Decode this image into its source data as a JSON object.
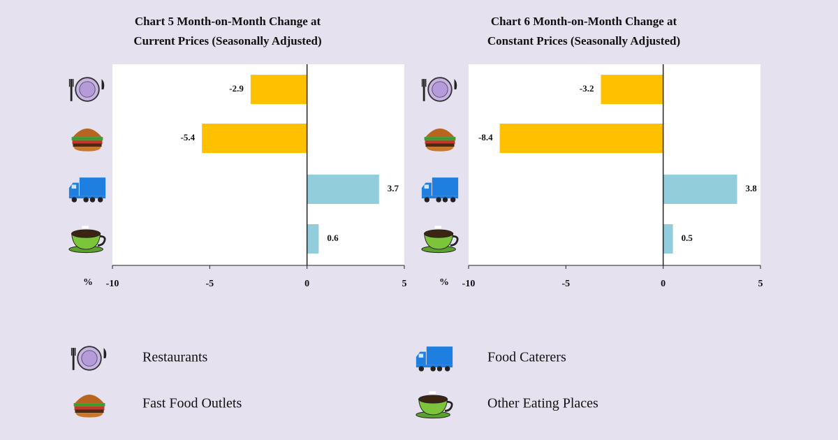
{
  "charts": [
    {
      "chart_data": {
        "type": "bar",
        "orientation": "horizontal",
        "title": [
          "Chart 5  Month-on-Month Change at",
          "Current Prices (Seasonally Adjusted)"
        ],
        "categories": [
          null,
          null,
          null,
          null
        ],
        "values": [
          -2.9,
          -5.4,
          3.7,
          0.6
        ],
        "colors": [
          "#ffc000",
          "#ffc000",
          "#92cddc",
          "#92cddc"
        ],
        "x_label": "%",
        "xlim": [
          -10,
          5
        ],
        "xticks": [
          -10,
          -5,
          0,
          5
        ]
      }
    },
    {
      "chart_data": {
        "type": "bar",
        "orientation": "horizontal",
        "title": [
          "Chart 6  Month-on-Month Change at",
          "Constant Prices (Seasonally Adjusted)"
        ],
        "categories": [
          null,
          null,
          null,
          null
        ],
        "values": [
          -3.2,
          -8.4,
          3.8,
          0.5
        ],
        "colors": [
          "#ffc000",
          "#ffc000",
          "#92cddc",
          "#92cddc"
        ],
        "x_label": "%",
        "xlim": [
          -10,
          5
        ],
        "xticks": [
          -10,
          -5,
          0,
          5
        ]
      }
    }
  ],
  "legend": [
    "Restaurants",
    "Fast Food Outlets",
    "Food Caterers",
    "Other Eating Places"
  ]
}
